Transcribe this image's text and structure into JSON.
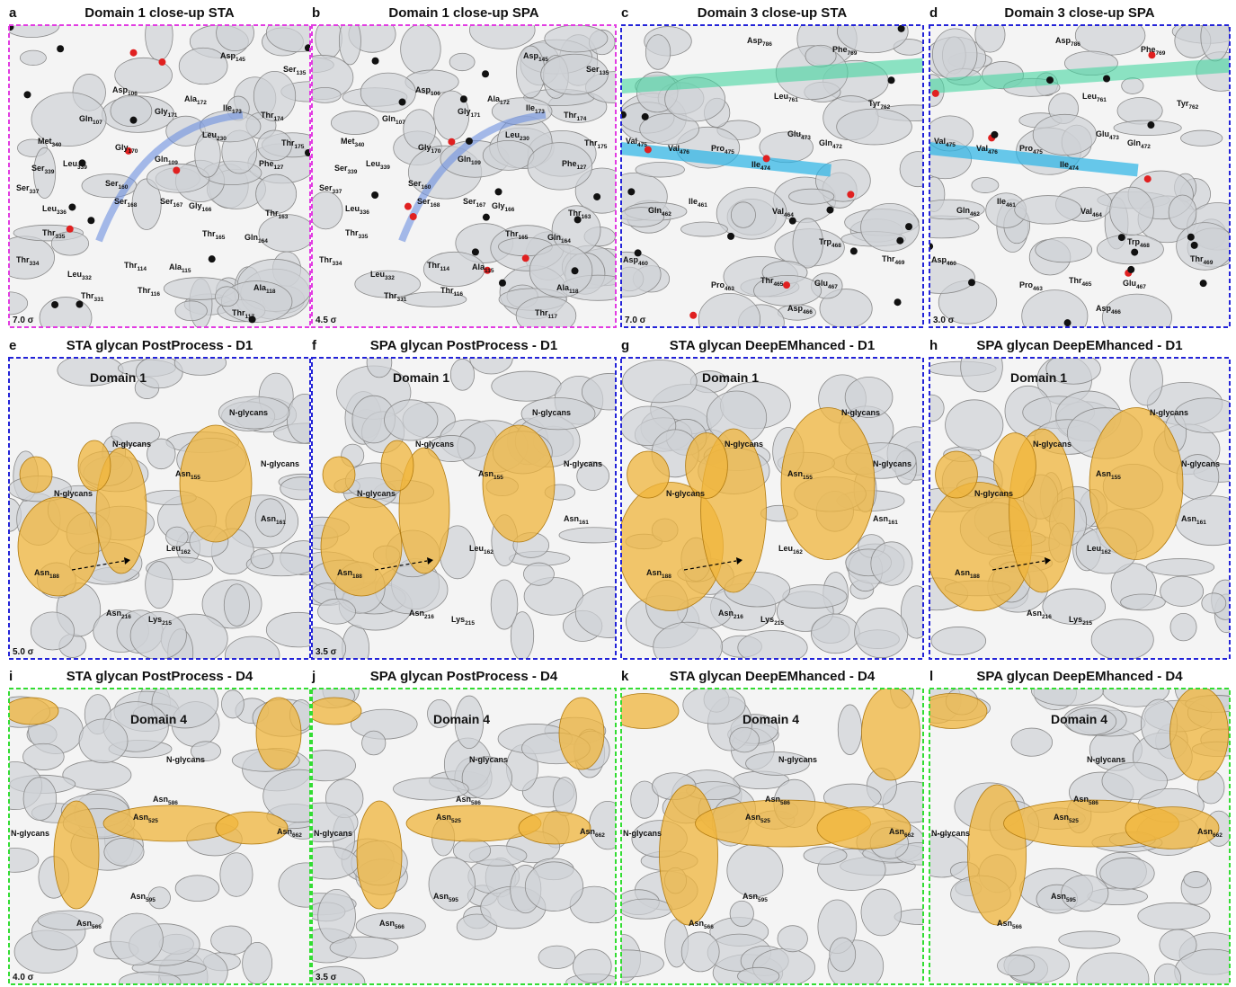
{
  "panels": [
    {
      "letter": "a",
      "title": "Domain 1 close-up STA",
      "sigma": "7.0 σ",
      "labels": [
        {
          "name": "Asp",
          "sub": "145"
        },
        {
          "name": "Ser",
          "sub": "135"
        },
        {
          "name": "Asp",
          "sub": "106"
        },
        {
          "name": "Ala",
          "sub": "172"
        },
        {
          "name": "Ile",
          "sub": "173"
        },
        {
          "name": "Thr",
          "sub": "174"
        },
        {
          "name": "Gln",
          "sub": "107"
        },
        {
          "name": "Gly",
          "sub": "171"
        },
        {
          "name": "Leu",
          "sub": "230"
        },
        {
          "name": "Thr",
          "sub": "175"
        },
        {
          "name": "Met",
          "sub": "340"
        },
        {
          "name": "Gly",
          "sub": "170"
        },
        {
          "name": "Gln",
          "sub": "109"
        },
        {
          "name": "Phe",
          "sub": "127"
        },
        {
          "name": "Leu",
          "sub": "339"
        },
        {
          "name": "Ser",
          "sub": "339"
        },
        {
          "name": "Ser",
          "sub": "160"
        },
        {
          "name": "Ser",
          "sub": "337"
        },
        {
          "name": "Ser",
          "sub": "168"
        },
        {
          "name": "Ser",
          "sub": "167"
        },
        {
          "name": "Gly",
          "sub": "166"
        },
        {
          "name": "Thr",
          "sub": "163"
        },
        {
          "name": "Leu",
          "sub": "336"
        },
        {
          "name": "Thr",
          "sub": "335"
        },
        {
          "name": "Thr",
          "sub": "165"
        },
        {
          "name": "Gln",
          "sub": "164"
        },
        {
          "name": "Thr",
          "sub": "334"
        },
        {
          "name": "Thr",
          "sub": "114"
        },
        {
          "name": "Ala",
          "sub": "115"
        },
        {
          "name": "Leu",
          "sub": "332"
        },
        {
          "name": "Ala",
          "sub": "118"
        },
        {
          "name": "Thr",
          "sub": "331"
        },
        {
          "name": "Thr",
          "sub": "116"
        },
        {
          "name": "Thr",
          "sub": "117"
        }
      ]
    },
    {
      "letter": "b",
      "title": "Domain 1 close-up SPA",
      "sigma": "4.5 σ",
      "labels": [
        {
          "name": "Asp",
          "sub": "145"
        },
        {
          "name": "Ser",
          "sub": "135"
        },
        {
          "name": "Asp",
          "sub": "106"
        },
        {
          "name": "Ala",
          "sub": "172"
        },
        {
          "name": "Ile",
          "sub": "173"
        },
        {
          "name": "Thr",
          "sub": "174"
        },
        {
          "name": "Gln",
          "sub": "107"
        },
        {
          "name": "Gly",
          "sub": "171"
        },
        {
          "name": "Leu",
          "sub": "230"
        },
        {
          "name": "Thr",
          "sub": "175"
        },
        {
          "name": "Met",
          "sub": "340"
        },
        {
          "name": "Gly",
          "sub": "170"
        },
        {
          "name": "Gln",
          "sub": "109"
        },
        {
          "name": "Phe",
          "sub": "127"
        },
        {
          "name": "Leu",
          "sub": "339"
        },
        {
          "name": "Ser",
          "sub": "339"
        },
        {
          "name": "Ser",
          "sub": "160"
        },
        {
          "name": "Ser",
          "sub": "337"
        },
        {
          "name": "Ser",
          "sub": "168"
        },
        {
          "name": "Ser",
          "sub": "167"
        },
        {
          "name": "Gly",
          "sub": "166"
        },
        {
          "name": "Thr",
          "sub": "163"
        },
        {
          "name": "Leu",
          "sub": "336"
        },
        {
          "name": "Thr",
          "sub": "335"
        },
        {
          "name": "Thr",
          "sub": "165"
        },
        {
          "name": "Gln",
          "sub": "164"
        },
        {
          "name": "Thr",
          "sub": "334"
        },
        {
          "name": "Thr",
          "sub": "114"
        },
        {
          "name": "Ala",
          "sub": "115"
        },
        {
          "name": "Leu",
          "sub": "332"
        },
        {
          "name": "Ala",
          "sub": "118"
        },
        {
          "name": "Thr",
          "sub": "331"
        },
        {
          "name": "Thr",
          "sub": "116"
        },
        {
          "name": "Thr",
          "sub": "117"
        }
      ]
    },
    {
      "letter": "c",
      "title": "Domain 3 close-up STA",
      "sigma": "7.0 σ",
      "labels": [
        {
          "name": "Asp",
          "sub": "786"
        },
        {
          "name": "Phe",
          "sub": "769"
        },
        {
          "name": "Leu",
          "sub": "761"
        },
        {
          "name": "Tyr",
          "sub": "762"
        },
        {
          "name": "Glu",
          "sub": "473"
        },
        {
          "name": "Gln",
          "sub": "472"
        },
        {
          "name": "Val",
          "sub": "475"
        },
        {
          "name": "Val",
          "sub": "476"
        },
        {
          "name": "Pro",
          "sub": "475"
        },
        {
          "name": "Ile",
          "sub": "474"
        },
        {
          "name": "Gln",
          "sub": "462"
        },
        {
          "name": "Ile",
          "sub": "461"
        },
        {
          "name": "Val",
          "sub": "464"
        },
        {
          "name": "Asp",
          "sub": "460"
        },
        {
          "name": "Trp",
          "sub": "468"
        },
        {
          "name": "Thr",
          "sub": "469"
        },
        {
          "name": "Pro",
          "sub": "463"
        },
        {
          "name": "Thr",
          "sub": "465"
        },
        {
          "name": "Glu",
          "sub": "467"
        },
        {
          "name": "Asp",
          "sub": "466"
        }
      ]
    },
    {
      "letter": "d",
      "title": "Domain 3 close-up SPA",
      "sigma": "3.0 σ",
      "labels": [
        {
          "name": "Asp",
          "sub": "786"
        },
        {
          "name": "Phe",
          "sub": "769"
        },
        {
          "name": "Leu",
          "sub": "761"
        },
        {
          "name": "Tyr",
          "sub": "762"
        },
        {
          "name": "Glu",
          "sub": "473"
        },
        {
          "name": "Gln",
          "sub": "472"
        },
        {
          "name": "Val",
          "sub": "475"
        },
        {
          "name": "Val",
          "sub": "476"
        },
        {
          "name": "Pro",
          "sub": "475"
        },
        {
          "name": "Ile",
          "sub": "474"
        },
        {
          "name": "Gln",
          "sub": "462"
        },
        {
          "name": "Ile",
          "sub": "461"
        },
        {
          "name": "Val",
          "sub": "464"
        },
        {
          "name": "Asp",
          "sub": "460"
        },
        {
          "name": "Trp",
          "sub": "468"
        },
        {
          "name": "Thr",
          "sub": "469"
        },
        {
          "name": "Pro",
          "sub": "463"
        },
        {
          "name": "Thr",
          "sub": "465"
        },
        {
          "name": "Glu",
          "sub": "467"
        },
        {
          "name": "Asp",
          "sub": "466"
        }
      ]
    },
    {
      "letter": "e",
      "title": "STA glycan PostProcess - D1",
      "sigma": "5.0 σ",
      "labels": [
        {
          "name": "Domain 1"
        },
        {
          "name": "N-glycans"
        },
        {
          "name": "N-glycans"
        },
        {
          "name": "Asn",
          "sub": "155"
        },
        {
          "name": "N-glycans"
        },
        {
          "name": "N-glycans"
        },
        {
          "name": "Asn",
          "sub": "161"
        },
        {
          "name": "Leu",
          "sub": "162"
        },
        {
          "name": "Asn",
          "sub": "188"
        },
        {
          "name": "Asn",
          "sub": "216"
        },
        {
          "name": "Lys",
          "sub": "215"
        }
      ]
    },
    {
      "letter": "f",
      "title": "SPA glycan PostProcess - D1",
      "sigma": "3.5 σ",
      "labels": [
        {
          "name": "Domain 1"
        },
        {
          "name": "N-glycans"
        },
        {
          "name": "N-glycans"
        },
        {
          "name": "Asn",
          "sub": "155"
        },
        {
          "name": "N-glycans"
        },
        {
          "name": "N-glycans"
        },
        {
          "name": "Asn",
          "sub": "161"
        },
        {
          "name": "Leu",
          "sub": "162"
        },
        {
          "name": "Asn",
          "sub": "188"
        },
        {
          "name": "Asn",
          "sub": "216"
        },
        {
          "name": "Lys",
          "sub": "215"
        }
      ]
    },
    {
      "letter": "g",
      "title": "STA glycan DeepEMhanced - D1",
      "labels": [
        {
          "name": "Domain 1"
        },
        {
          "name": "N-glycans"
        },
        {
          "name": "N-glycans"
        },
        {
          "name": "Asn",
          "sub": "155"
        },
        {
          "name": "N-glycans"
        },
        {
          "name": "N-glycans"
        },
        {
          "name": "Asn",
          "sub": "161"
        },
        {
          "name": "Leu",
          "sub": "162"
        },
        {
          "name": "Asn",
          "sub": "188"
        },
        {
          "name": "Asn",
          "sub": "216"
        },
        {
          "name": "Lys",
          "sub": "215"
        }
      ]
    },
    {
      "letter": "h",
      "title": "SPA glycan DeepEMhanced - D1",
      "labels": [
        {
          "name": "Domain 1"
        },
        {
          "name": "N-glycans"
        },
        {
          "name": "N-glycans"
        },
        {
          "name": "Asn",
          "sub": "155"
        },
        {
          "name": "N-glycans"
        },
        {
          "name": "N-glycans"
        },
        {
          "name": "Asn",
          "sub": "161"
        },
        {
          "name": "Leu",
          "sub": "162"
        },
        {
          "name": "Asn",
          "sub": "188"
        },
        {
          "name": "Asn",
          "sub": "216"
        },
        {
          "name": "Lys",
          "sub": "215"
        }
      ]
    },
    {
      "letter": "i",
      "title": "STA glycan PostProcess - D4",
      "sigma": "4.0 σ",
      "labels": [
        {
          "name": "Domain 4"
        },
        {
          "name": "N-glycans"
        },
        {
          "name": "Asn",
          "sub": "586"
        },
        {
          "name": "N-glycans"
        },
        {
          "name": "Asn",
          "sub": "525"
        },
        {
          "name": "Asn",
          "sub": "662"
        },
        {
          "name": "Asn",
          "sub": "595"
        },
        {
          "name": "Asn",
          "sub": "566"
        }
      ]
    },
    {
      "letter": "j",
      "title": "SPA glycan PostProcess - D4",
      "sigma": "3.5 σ",
      "labels": [
        {
          "name": "Domain 4"
        },
        {
          "name": "N-glycans"
        },
        {
          "name": "Asn",
          "sub": "586"
        },
        {
          "name": "N-glycans"
        },
        {
          "name": "Asn",
          "sub": "525"
        },
        {
          "name": "Asn",
          "sub": "662"
        },
        {
          "name": "Asn",
          "sub": "595"
        },
        {
          "name": "Asn",
          "sub": "566"
        }
      ]
    },
    {
      "letter": "k",
      "title": "STA glycan DeepEMhanced - D4",
      "labels": [
        {
          "name": "Domain 4"
        },
        {
          "name": "N-glycans"
        },
        {
          "name": "Asn",
          "sub": "586"
        },
        {
          "name": "N-glycans"
        },
        {
          "name": "Asn",
          "sub": "525"
        },
        {
          "name": "Asn",
          "sub": "662"
        },
        {
          "name": "Asn",
          "sub": "595"
        },
        {
          "name": "Asn",
          "sub": "566"
        }
      ]
    },
    {
      "letter": "l",
      "title": "SPA glycan DeepEMhanced - D4",
      "labels": [
        {
          "name": "Domain 4"
        },
        {
          "name": "N-glycans"
        },
        {
          "name": "Asn",
          "sub": "586"
        },
        {
          "name": "N-glycans"
        },
        {
          "name": "Asn",
          "sub": "525"
        },
        {
          "name": "Asn",
          "sub": "662"
        },
        {
          "name": "Asn",
          "sub": "595"
        },
        {
          "name": "Asn",
          "sub": "566"
        }
      ]
    }
  ]
}
